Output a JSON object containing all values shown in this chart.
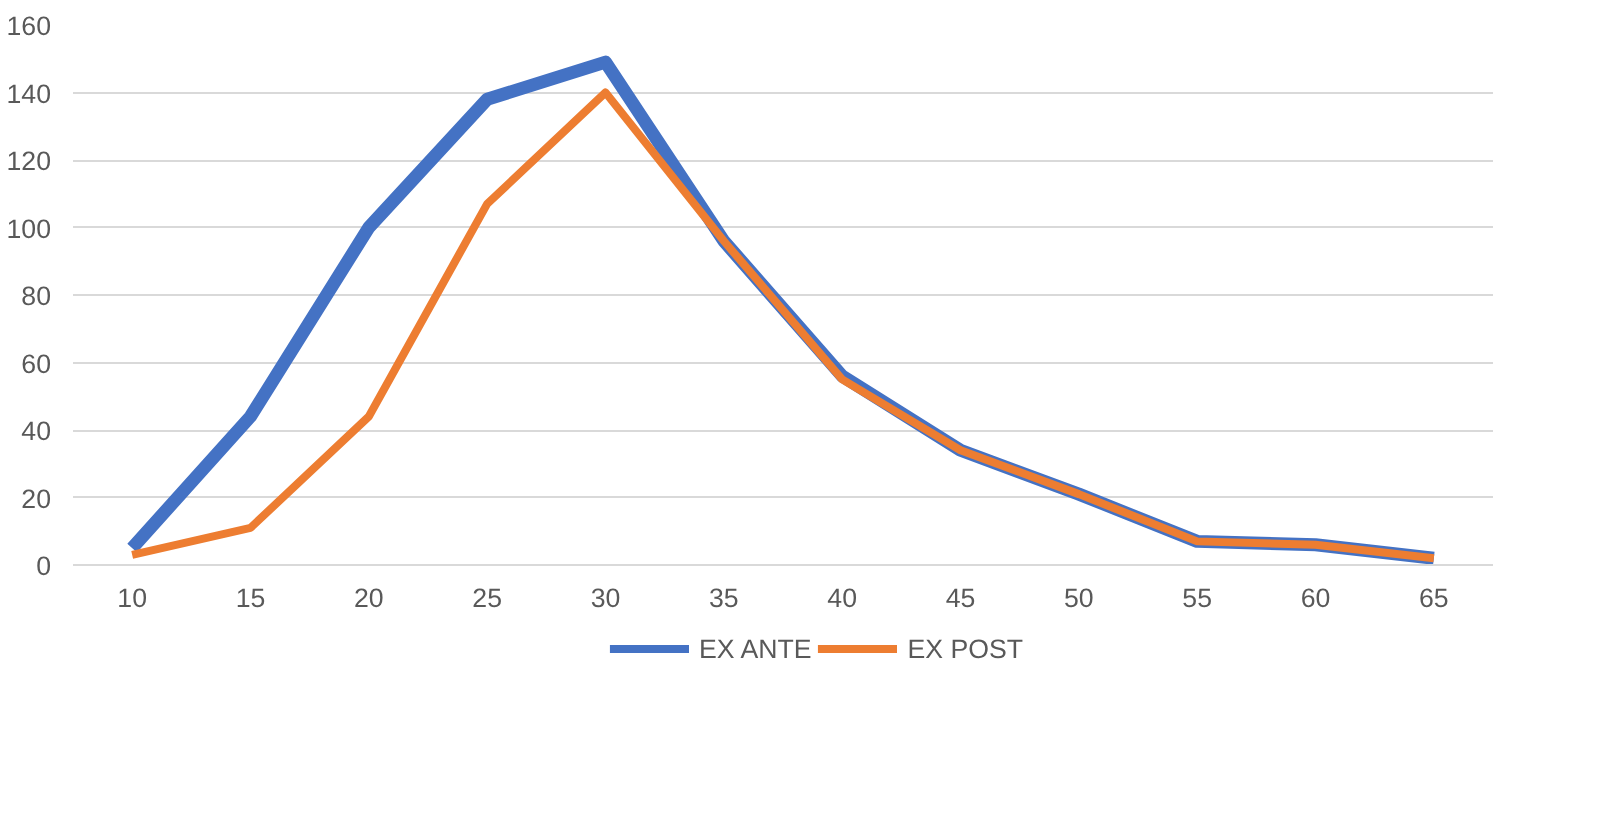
{
  "chart_data": {
    "type": "line",
    "categories": [
      "10",
      "15",
      "20",
      "25",
      "30",
      "35",
      "40",
      "45",
      "50",
      "55",
      "60",
      "65"
    ],
    "series": [
      {
        "name": "EX ANTE",
        "color": "#4472c4",
        "values": [
          5,
          44,
          100,
          138,
          149,
          96,
          56,
          34,
          21,
          7,
          6,
          2
        ]
      },
      {
        "name": "EX POST",
        "color": "#ed7d31",
        "values": [
          3,
          11,
          44,
          107,
          140,
          96,
          55,
          34,
          21,
          7,
          6,
          2
        ]
      }
    ],
    "ylim": [
      0,
      160
    ],
    "yticks": [
      0,
      20,
      40,
      60,
      80,
      100,
      120,
      140,
      160
    ],
    "grid": "y",
    "legend": "bottom",
    "marker": "none",
    "line_style": "solid"
  }
}
